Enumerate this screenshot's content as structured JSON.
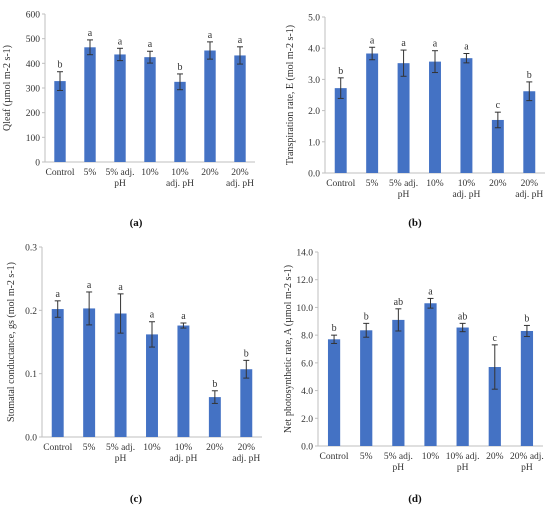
{
  "colors": {
    "bar": "#4472c4",
    "axis": "#bfbfbf",
    "error_bar": "#333333"
  },
  "chart_data": [
    {
      "panel": "(a)",
      "type": "bar",
      "ylabel": "Qleaf (µmol m-2 s-1)",
      "ylim": [
        0,
        600
      ],
      "yticks": [
        "0",
        "100",
        "200",
        "300",
        "400",
        "500",
        "600"
      ],
      "categories": [
        [
          "Control"
        ],
        [
          "5%"
        ],
        [
          "5% adj.",
          "pH"
        ],
        [
          "10%"
        ],
        [
          "10%",
          "adj. pH"
        ],
        [
          "20%"
        ],
        [
          "20%",
          "adj. pH"
        ]
      ],
      "values": [
        328,
        465,
        436,
        425,
        325,
        452,
        432
      ],
      "errors": [
        38,
        30,
        25,
        24,
        32,
        35,
        35
      ],
      "significance": [
        "b",
        "a",
        "a",
        "a",
        "b",
        "a",
        "a"
      ]
    },
    {
      "panel": "(b)",
      "type": "bar",
      "ylabel": "Transpiration rate, E (mol m-2 s-1)",
      "ylim": [
        0,
        5
      ],
      "yticks": [
        "0.0",
        "1.0",
        "2.0",
        "3.0",
        "4.0",
        "5.0"
      ],
      "categories": [
        [
          "Control"
        ],
        [
          "5%"
        ],
        [
          "5% adj.",
          "pH"
        ],
        [
          "10%"
        ],
        [
          "10%",
          "adj. pH"
        ],
        [
          "20%"
        ],
        [
          "20%",
          "adj. pH"
        ]
      ],
      "values": [
        2.72,
        3.83,
        3.52,
        3.57,
        3.68,
        1.7,
        2.62
      ],
      "errors": [
        0.33,
        0.2,
        0.42,
        0.35,
        0.15,
        0.25,
        0.3
      ],
      "significance": [
        "b",
        "a",
        "a",
        "a",
        "a",
        "c",
        "b"
      ]
    },
    {
      "panel": "(c)",
      "type": "bar",
      "ylabel": "Stomatal conductance, gs (mol m-2 s-1)",
      "ylim": [
        0,
        0.3
      ],
      "yticks": [
        "0.0",
        "0.1",
        "0.2",
        "0.3"
      ],
      "categories": [
        [
          "Control"
        ],
        [
          "5%"
        ],
        [
          "5% adj.",
          "pH"
        ],
        [
          "10%"
        ],
        [
          "10%",
          "adj. pH"
        ],
        [
          "20%"
        ],
        [
          "20%",
          "adj. pH"
        ]
      ],
      "values": [
        0.202,
        0.203,
        0.195,
        0.162,
        0.176,
        0.063,
        0.107
      ],
      "errors": [
        0.013,
        0.026,
        0.031,
        0.02,
        0.004,
        0.01,
        0.014
      ],
      "significance": [
        "a",
        "a",
        "a",
        "a",
        "a",
        "b",
        "b"
      ]
    },
    {
      "panel": "(d)",
      "type": "bar",
      "ylabel": "Net photosynthetic rate, A (µmol m-2 s-1)",
      "ylim": [
        0,
        14
      ],
      "yticks": [
        "0.0",
        "2.0",
        "4.0",
        "6.0",
        "8.0",
        "10.0",
        "12.0",
        "14.0"
      ],
      "categories": [
        [
          "Control"
        ],
        [
          "5%"
        ],
        [
          "5% adj.",
          "pH"
        ],
        [
          "10%"
        ],
        [
          "10% adj.",
          "pH"
        ],
        [
          "20%"
        ],
        [
          "20% adj.",
          "pH"
        ]
      ],
      "values": [
        7.7,
        8.35,
        9.1,
        10.3,
        8.55,
        5.7,
        8.3
      ],
      "errors": [
        0.3,
        0.5,
        0.8,
        0.35,
        0.3,
        1.6,
        0.4
      ],
      "significance": [
        "b",
        "b",
        "ab",
        "a",
        "ab",
        "c",
        "b"
      ]
    }
  ]
}
